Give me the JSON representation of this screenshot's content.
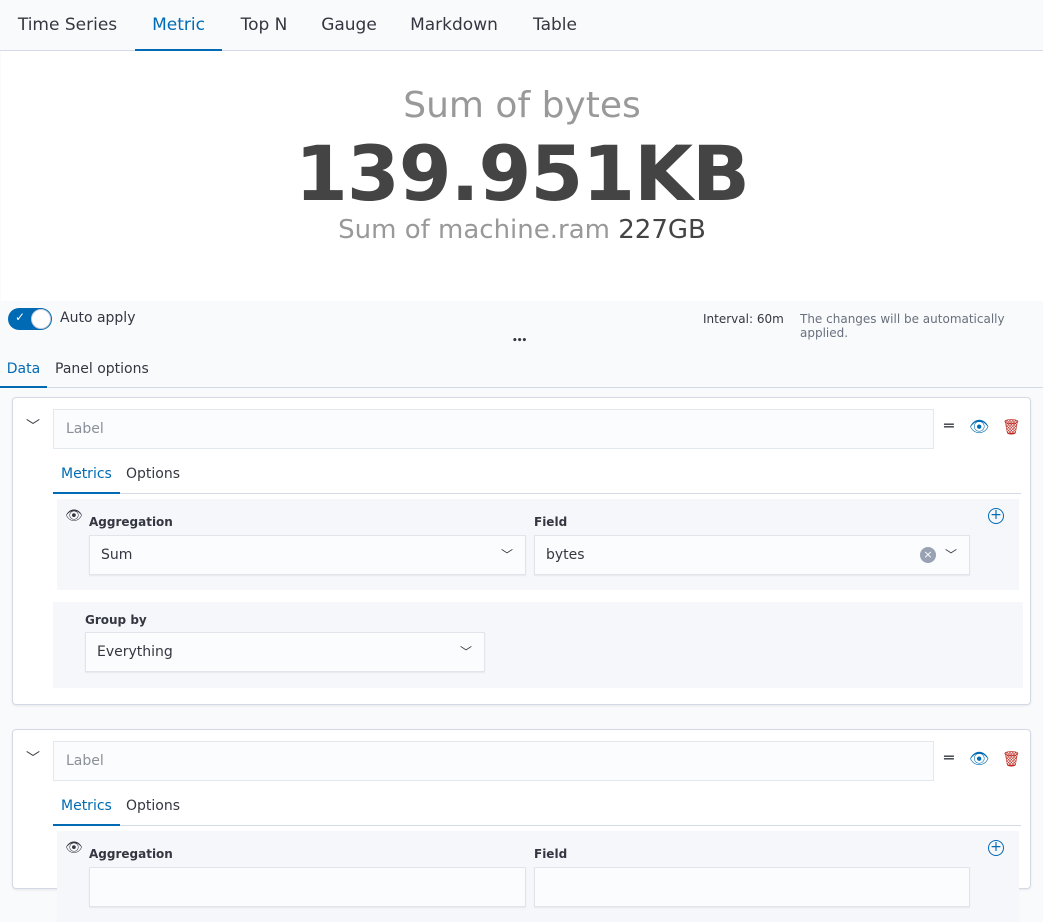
{
  "nav": {
    "tabs": [
      "Time Series",
      "Metric",
      "Top N",
      "Gauge",
      "Markdown",
      "Table"
    ],
    "active": "Metric"
  },
  "metric": {
    "title": "Sum of bytes",
    "value": "139.951KB",
    "secondary_label": "Sum of machine.ram",
    "secondary_value": "227GB"
  },
  "toolbar": {
    "auto_apply_label": "Auto apply",
    "auto_apply_on": true,
    "interval": "Interval: 60m",
    "status": "The changes will be automatically applied.",
    "more": "•••"
  },
  "editor_tabs": {
    "data": "Data",
    "panel_options": "Panel options"
  },
  "series": [
    {
      "label_placeholder": "Label",
      "tabs": {
        "metrics": "Metrics",
        "options": "Options"
      },
      "aggregation_label": "Aggregation",
      "aggregation": "Sum",
      "field_label": "Field",
      "field": "bytes",
      "group_by_label": "Group by",
      "group_by": "Everything"
    },
    {
      "label_placeholder": "Label",
      "tabs": {
        "metrics": "Metrics",
        "options": "Options"
      },
      "aggregation_label": "Aggregation",
      "field_label": "Field"
    }
  ],
  "colors": {
    "accent": "#006bb4",
    "danger": "#bd271e"
  }
}
